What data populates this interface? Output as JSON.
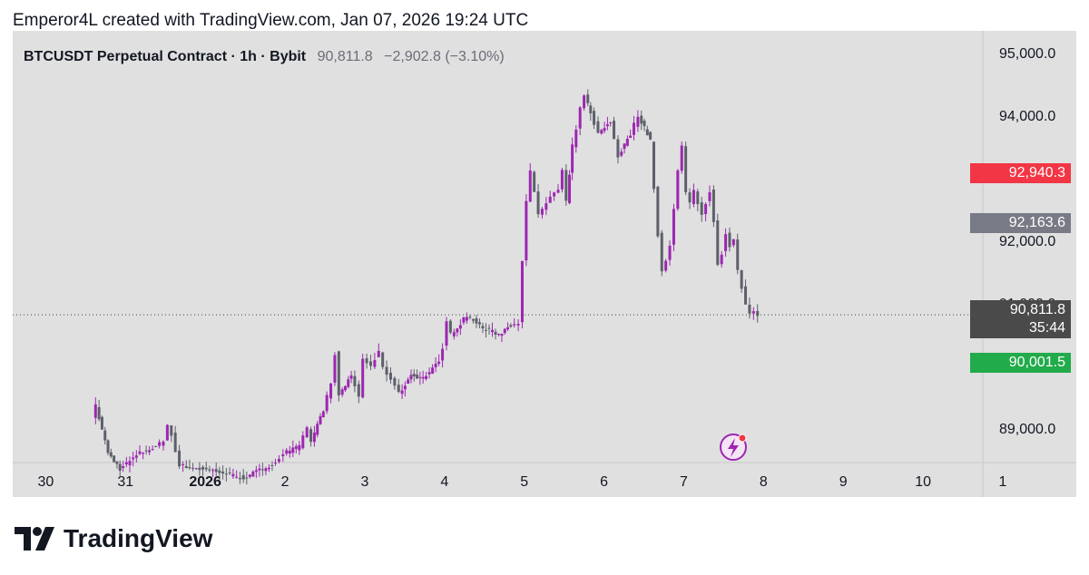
{
  "header": {
    "text": "Emperor4L created with TradingView.com, Jan 07, 2026 19:24 UTC"
  },
  "legend": {
    "symbol": "BTCUSDT Perpetual Contract · 1h · Bybit",
    "price": "90,811.8",
    "change": "−2,902.8 (−3.10%)"
  },
  "price_tags": {
    "stop": "92,940.3",
    "entry": "92,163.6",
    "last": "90,811.8",
    "countdown": "35:44",
    "target": "90,001.5"
  },
  "colors": {
    "candle_up": "#9c27b0",
    "candle_down": "#5d606b",
    "stop_tag": "#f23645",
    "entry_tag": "#787b86",
    "last_tag": "#4a4a4a",
    "target_tag": "#22ab4a",
    "risk_zone": "#e9a8ac",
    "reward_zone": "#99d49f",
    "background": "#e0e0e0"
  },
  "icons": {
    "alert": "lightning-bolt-icon",
    "brand": "tradingview-logo-icon"
  },
  "brand": {
    "name": "TradingView"
  },
  "chart_data": {
    "type": "candlestick",
    "interval": "1h",
    "yaxis": {
      "ticks": [
        89000,
        91000,
        92000,
        94000,
        95000
      ],
      "tick_labels": [
        "89,000.0",
        "91,000.0",
        "92,000.0",
        "94,000.0",
        "95,000.0"
      ],
      "range": [
        88450,
        95350
      ]
    },
    "xaxis": {
      "ticks": [
        {
          "label": "30",
          "bold": false
        },
        {
          "label": "31",
          "bold": false
        },
        {
          "label": "2026",
          "bold": true
        },
        {
          "label": "2",
          "bold": false
        },
        {
          "label": "3",
          "bold": false
        },
        {
          "label": "4",
          "bold": false
        },
        {
          "label": "5",
          "bold": false
        },
        {
          "label": "6",
          "bold": false
        },
        {
          "label": "7",
          "bold": false
        },
        {
          "label": "8",
          "bold": false
        },
        {
          "label": "9",
          "bold": false
        },
        {
          "label": "10",
          "bold": false
        },
        {
          "label": "1",
          "bold": false
        }
      ],
      "range": [
        29.7,
        41.75
      ]
    },
    "last_price": 90811.8,
    "position": {
      "side": "short",
      "stop": 92940.3,
      "entry": 92163.6,
      "target": 90001.5,
      "start": 7.38,
      "end": 8.28
    },
    "price_path": [
      [
        30.6,
        89200
      ],
      [
        30.65,
        89350
      ],
      [
        30.8,
        88600
      ],
      [
        30.95,
        88350
      ],
      [
        31.2,
        88600
      ],
      [
        31.4,
        88700
      ],
      [
        31.5,
        88800
      ],
      [
        31.55,
        89050
      ],
      [
        31.6,
        88900
      ],
      [
        31.7,
        88400
      ],
      [
        32.2,
        88300
      ],
      [
        32.5,
        88200
      ],
      [
        32.9,
        88450
      ],
      [
        33.0,
        88600
      ],
      [
        33.2,
        88700
      ],
      [
        33.3,
        89000
      ],
      [
        33.35,
        88800
      ],
      [
        33.5,
        89300
      ],
      [
        33.6,
        89700
      ],
      [
        33.65,
        90200
      ],
      [
        33.7,
        89500
      ],
      [
        33.85,
        89850
      ],
      [
        33.95,
        89500
      ],
      [
        34.0,
        90100
      ],
      [
        34.1,
        90000
      ],
      [
        34.2,
        90200
      ],
      [
        34.25,
        89950
      ],
      [
        34.35,
        89800
      ],
      [
        34.45,
        89550
      ],
      [
        34.6,
        89850
      ],
      [
        34.75,
        89800
      ],
      [
        34.95,
        90050
      ],
      [
        35.0,
        90300
      ],
      [
        35.05,
        90700
      ],
      [
        35.1,
        90500
      ],
      [
        35.3,
        90800
      ],
      [
        35.5,
        90600
      ],
      [
        35.7,
        90500
      ],
      [
        35.85,
        90650
      ],
      [
        35.95,
        90700
      ],
      [
        36.0,
        91700
      ],
      [
        36.05,
        92600
      ],
      [
        36.1,
        93100
      ],
      [
        36.2,
        92400
      ],
      [
        36.25,
        92500
      ],
      [
        36.35,
        92700
      ],
      [
        36.45,
        92800
      ],
      [
        36.5,
        93100
      ],
      [
        36.55,
        92600
      ],
      [
        36.62,
        93500
      ],
      [
        36.68,
        93800
      ],
      [
        36.72,
        94100
      ],
      [
        36.78,
        94300
      ],
      [
        36.85,
        94050
      ],
      [
        36.95,
        93700
      ],
      [
        37.1,
        93900
      ],
      [
        37.2,
        93350
      ],
      [
        37.35,
        93700
      ],
      [
        37.45,
        94000
      ],
      [
        37.6,
        93600
      ],
      [
        37.7,
        92100
      ],
      [
        37.75,
        91500
      ],
      [
        37.85,
        91900
      ],
      [
        37.95,
        93100
      ],
      [
        38.0,
        93500
      ],
      [
        38.05,
        92800
      ],
      [
        38.1,
        92600
      ],
      [
        38.15,
        92800
      ],
      [
        38.25,
        92400
      ],
      [
        38.35,
        92800
      ],
      [
        38.4,
        92300
      ],
      [
        38.45,
        91600
      ],
      [
        38.5,
        91800
      ],
      [
        38.55,
        92100
      ],
      [
        38.6,
        91900
      ],
      [
        38.65,
        92000
      ],
      [
        38.7,
        91500
      ],
      [
        38.75,
        91250
      ],
      [
        38.8,
        91000
      ],
      [
        38.85,
        90800
      ],
      [
        38.9,
        90900
      ],
      [
        38.95,
        90811.8
      ]
    ]
  }
}
